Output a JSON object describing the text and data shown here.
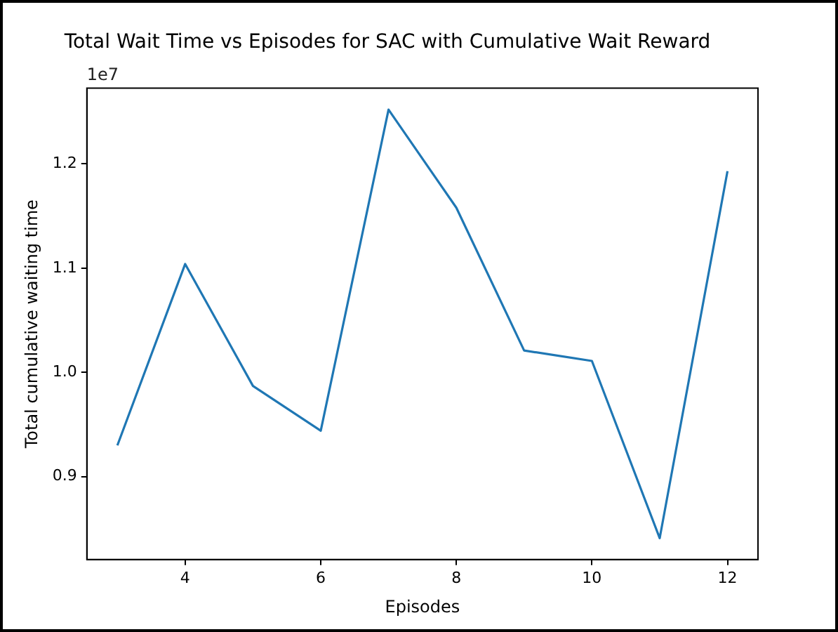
{
  "chart_data": {
    "type": "line",
    "title": "Total Wait Time vs Episodes for SAC with Cumulative Wait Reward",
    "xlabel": "Episodes",
    "ylabel": "Total cumulative waiting time",
    "x": [
      3,
      4,
      5,
      6,
      7,
      8,
      9,
      10,
      11,
      12
    ],
    "series": [
      {
        "color": "#1f77b4",
        "values": [
          0.93,
          1.104,
          0.987,
          0.944,
          1.252,
          1.158,
          1.021,
          1.011,
          0.841,
          1.193
        ]
      }
    ],
    "xlim": [
      2.55,
      12.45
    ],
    "xticks": [
      4,
      6,
      8,
      10,
      12
    ],
    "ylim": [
      0.8205,
      1.2726
    ],
    "yticks": [
      0.9,
      {
        "value": 1,
        "label": "1.0"
      },
      1.1,
      1.2
    ],
    "annotations": [
      "1e7"
    ],
    "grid": false,
    "legend": false,
    "marker": "none",
    "line_style": "solid"
  }
}
